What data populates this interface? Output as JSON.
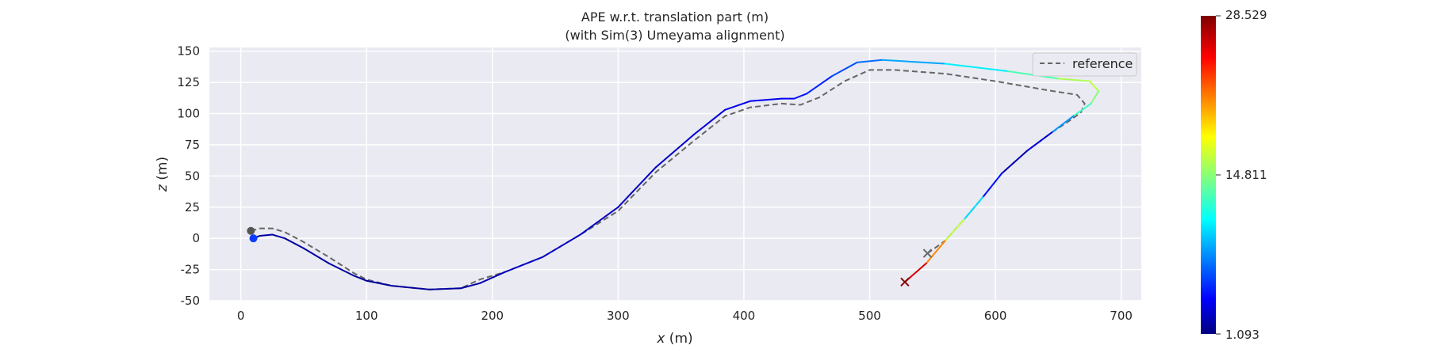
{
  "chart_data": {
    "type": "line",
    "title": "APE w.r.t. translation part (m)",
    "subtitle": "(with Sim(3) Umeyama alignment)",
    "xlabel_var": "x",
    "xlabel_unit": " (m)",
    "ylabel_var": "z",
    "ylabel_unit": " (m)",
    "xlim": [
      -25,
      716
    ],
    "ylim": [
      -50,
      153
    ],
    "xticks": [
      0,
      100,
      200,
      300,
      400,
      500,
      600,
      700
    ],
    "yticks": [
      -50,
      -25,
      0,
      25,
      50,
      75,
      100,
      125,
      150
    ],
    "grid": true,
    "legend": {
      "placement": "top-right",
      "entries": [
        "reference"
      ]
    },
    "colorbar": {
      "min": 1.093,
      "max": 28.529,
      "ticks": [
        "1.093",
        "14.811",
        "28.529"
      ],
      "colormap": "jet"
    },
    "reference": {
      "name": "reference",
      "style": "dashed",
      "color": "#666666",
      "x": [
        8,
        15,
        25,
        35,
        50,
        70,
        90,
        100,
        120,
        150,
        175,
        190,
        210,
        240,
        270,
        300,
        330,
        360,
        385,
        405,
        430,
        445,
        460,
        480,
        500,
        520,
        560,
        600,
        640,
        665,
        671,
        668,
        660,
        645,
        625,
        605,
        590,
        575,
        560,
        546
      ],
      "y": [
        6,
        8,
        8,
        5,
        -3,
        -15,
        -28,
        -33,
        -38,
        -41,
        -40,
        -33,
        -27,
        -15,
        3,
        22,
        53,
        78,
        98,
        105,
        108,
        107,
        113,
        126,
        135,
        135,
        132,
        126,
        119,
        115,
        108,
        101,
        95,
        85,
        70,
        52,
        33,
        15,
        -2,
        -12
      ]
    },
    "estimate": {
      "name": "estimate",
      "colormap": "jet",
      "x": [
        10,
        15,
        25,
        35,
        50,
        70,
        90,
        100,
        120,
        150,
        175,
        190,
        210,
        240,
        270,
        300,
        330,
        360,
        385,
        405,
        430,
        440,
        450,
        470,
        490,
        510,
        560,
        610,
        650,
        675,
        682,
        676,
        662,
        645,
        625,
        605,
        590,
        575,
        560,
        545,
        528
      ],
      "y": [
        0,
        2,
        3,
        0,
        -8,
        -20,
        -30,
        -34,
        -38,
        -41,
        -40,
        -36,
        -27,
        -15,
        3,
        25,
        57,
        83,
        103,
        110,
        112,
        112,
        116,
        130,
        141,
        143,
        140,
        134,
        128,
        126,
        118,
        108,
        98,
        85,
        70,
        52,
        33,
        15,
        -2,
        -20,
        -35
      ],
      "error": [
        2,
        2,
        2,
        2,
        2,
        2,
        2,
        2,
        2,
        2,
        2,
        2,
        3,
        3,
        3,
        3,
        3,
        3,
        4,
        4,
        4,
        5,
        5,
        6,
        7,
        8,
        10,
        12,
        15,
        17,
        16,
        14,
        12,
        5,
        2,
        3,
        7,
        14,
        19,
        24,
        28.5
      ]
    },
    "markers": [
      {
        "name": "reference-start",
        "x": 8,
        "y": 6,
        "symbol": "circle",
        "color": "#555555"
      },
      {
        "name": "estimate-start",
        "x": 10,
        "y": 0,
        "symbol": "circle",
        "color": "#0a3cff"
      },
      {
        "name": "reference-end",
        "x": 546,
        "y": -12,
        "symbol": "x",
        "color": "#666666"
      },
      {
        "name": "estimate-end",
        "x": 528,
        "y": -35,
        "symbol": "x",
        "color": "#8b0000"
      }
    ]
  }
}
